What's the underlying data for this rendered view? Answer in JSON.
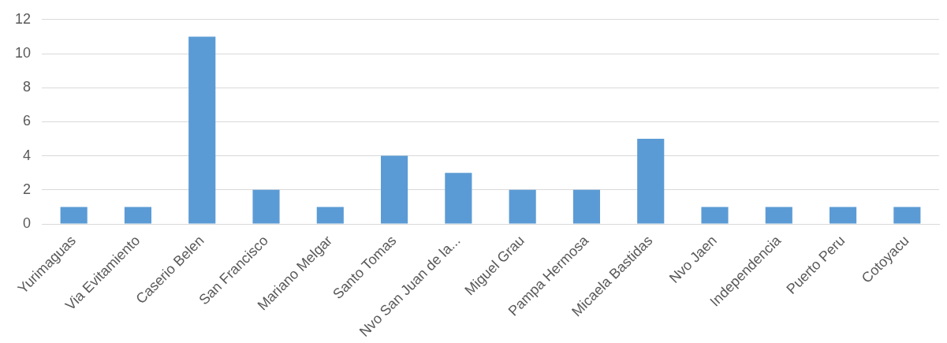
{
  "chart_data": {
    "type": "bar",
    "categories": [
      "Yurimaguas",
      "Via Evitamiento",
      "Caserio Belen",
      "San Francisco",
      "Mariano Melgar",
      "Santo Tomas",
      "Nvo San Juan de la...",
      "Miguel Grau",
      "Pampa Hermosa",
      "Micaela Bastidas",
      "Nvo Jaen",
      "Independencia",
      "Puerto Peru",
      "Cotoyacu"
    ],
    "values": [
      1,
      1,
      11,
      2,
      1,
      4,
      3,
      2,
      2,
      5,
      1,
      1,
      1,
      1
    ],
    "color": "#5b9bd5",
    "ylim": [
      0,
      12
    ],
    "yticks": [
      0,
      2,
      4,
      6,
      8,
      10,
      12
    ],
    "grid": "y",
    "legend": false
  }
}
